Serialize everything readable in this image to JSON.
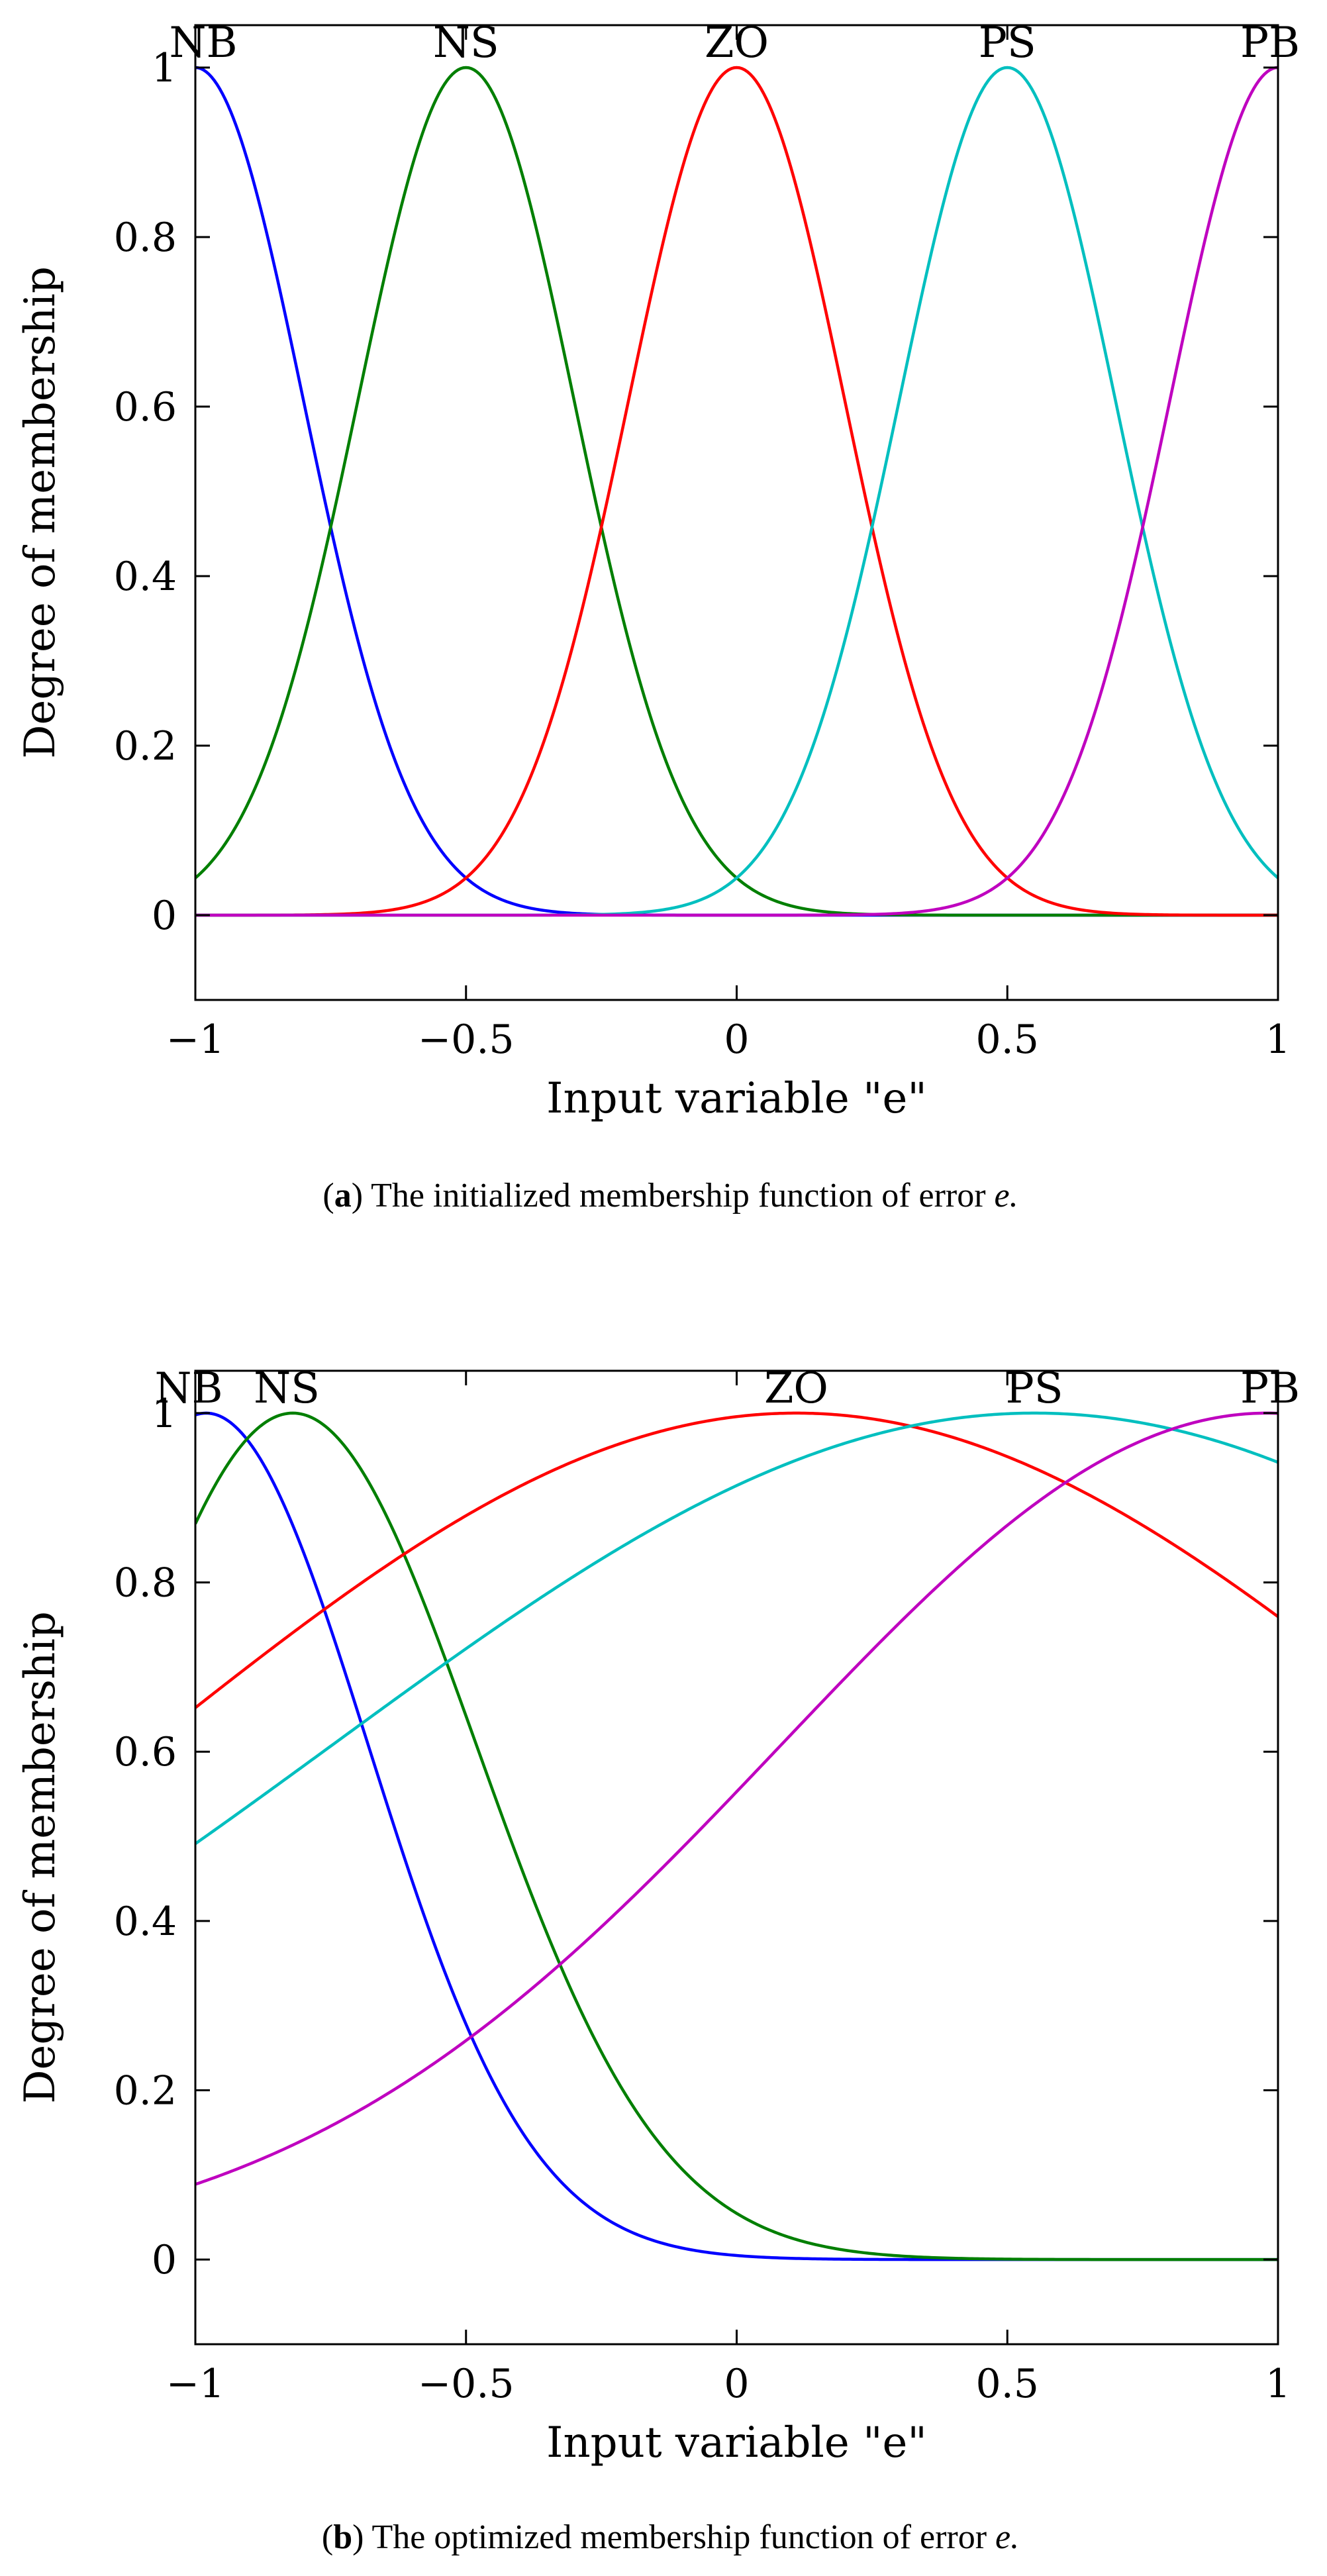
{
  "chart_data": [
    {
      "type": "line",
      "panel": "a",
      "title": "",
      "xlabel": "Input variable \"e\"",
      "ylabel": "Degree of membership",
      "xlim": [
        -1,
        1
      ],
      "ylim": [
        -0.1,
        1.05
      ],
      "xticks": [
        -1,
        -0.5,
        0,
        0.5,
        1
      ],
      "xtick_labels": [
        "−1",
        "−0.5",
        "0",
        "0.5",
        "1"
      ],
      "yticks": [
        0,
        0.2,
        0.4,
        0.6,
        0.8,
        1
      ],
      "ytick_labels": [
        "0",
        "0.2",
        "0.4",
        "0.6",
        "0.8",
        "1"
      ],
      "series": [
        {
          "name": "NB",
          "color": "#0000ff",
          "function": "gaussian",
          "center": -1.0,
          "sigma": 0.2
        },
        {
          "name": "NS",
          "color": "#007f00",
          "function": "gaussian",
          "center": -0.5,
          "sigma": 0.2
        },
        {
          "name": "ZO",
          "color": "#ff0000",
          "function": "gaussian",
          "center": 0.0,
          "sigma": 0.2
        },
        {
          "name": "PS",
          "color": "#00bfbf",
          "function": "gaussian",
          "center": 0.5,
          "sigma": 0.2
        },
        {
          "name": "PB",
          "color": "#bf00bf",
          "function": "gaussian",
          "center": 1.0,
          "sigma": 0.2
        }
      ],
      "caption_prefix": "(",
      "caption_letter": "a",
      "caption_suffix": ")",
      "caption_text": "The initialized membership function of error",
      "caption_var": "e."
    },
    {
      "type": "line",
      "panel": "b",
      "title": "",
      "xlabel": "Input variable \"e\"",
      "ylabel": "Degree of membership",
      "xlim": [
        -1,
        1
      ],
      "ylim": [
        -0.1,
        1.05
      ],
      "xticks": [
        -1,
        -0.5,
        0,
        0.5,
        1
      ],
      "xtick_labels": [
        "−1",
        "−0.5",
        "0",
        "0.5",
        "1"
      ],
      "yticks": [
        0,
        0.2,
        0.4,
        0.6,
        0.8,
        1
      ],
      "ytick_labels": [
        "0",
        "0.2",
        "0.4",
        "0.6",
        "0.8",
        "1"
      ],
      "series": [
        {
          "name": "NB",
          "color": "#0000ff",
          "function": "gaussian",
          "center": -0.98,
          "sigma": 0.3
        },
        {
          "name": "NS",
          "color": "#007f00",
          "function": "gaussian",
          "center": -0.82,
          "sigma": 0.34
        },
        {
          "name": "ZO",
          "color": "#ff0000",
          "function": "gaussian",
          "center": 0.11,
          "sigma": 1.2
        },
        {
          "name": "PS",
          "color": "#00bfbf",
          "function": "gaussian",
          "center": 0.55,
          "sigma": 1.3
        },
        {
          "name": "PB",
          "color": "#bf00bf",
          "function": "gaussian",
          "center": 0.98,
          "sigma": 0.9
        }
      ],
      "caption_prefix": "(",
      "caption_letter": "b",
      "caption_suffix": ")",
      "caption_text": "The optimized membership function of error",
      "caption_var": "e."
    }
  ]
}
